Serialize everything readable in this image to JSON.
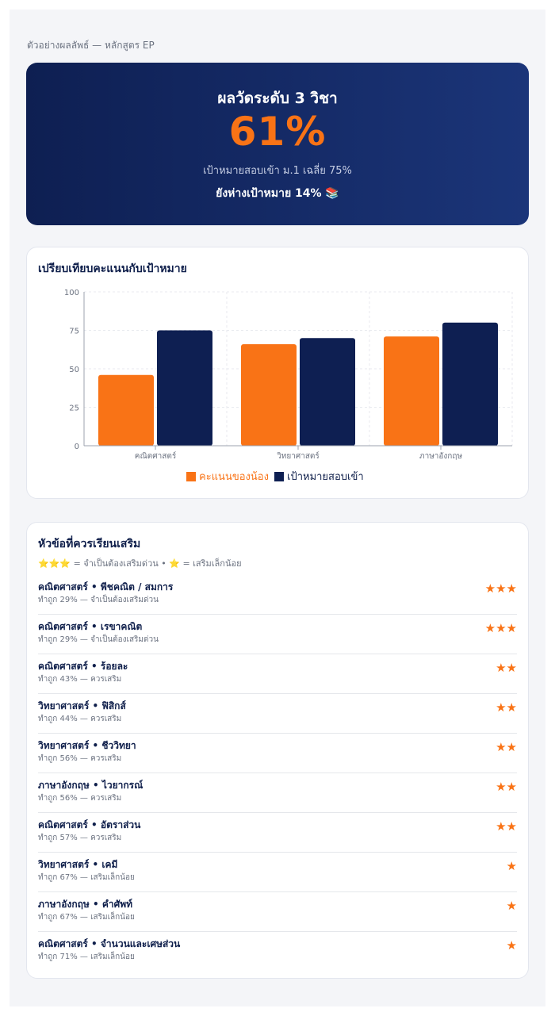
{
  "breadcrumb": "ตัวอย่างผลลัพธ์ — หลักสูตร EP",
  "hero": {
    "title": "ผลวัดระดับ 3 วิชา",
    "score": "61%",
    "target_text": "เป้าหมายสอบเข้า ม.1 เฉลี่ย 75%",
    "gap_text": "ยังห่างเป้าหมาย 14% 📚"
  },
  "colors": {
    "accent": "#f97316",
    "navy": "#0e1f52"
  },
  "chart_title": "เปรียบเทียบคะแนนกับเป้าหมาย",
  "chart_data": {
    "type": "bar",
    "categories": [
      "คณิตศาสตร์",
      "วิทยาศาสตร์",
      "ภาษาอังกฤษ"
    ],
    "series": [
      {
        "name": "คะแนนของน้อง",
        "values": [
          46,
          66,
          71
        ],
        "color": "#f97316"
      },
      {
        "name": "เป้าหมายสอบเข้า",
        "values": [
          75,
          70,
          80
        ],
        "color": "#0e1f52"
      }
    ],
    "ylim": [
      0,
      100
    ],
    "yticks": [
      0,
      25,
      50,
      75,
      100
    ],
    "grid": true,
    "legend": "bottom"
  },
  "topics": {
    "title": "หัวข้อที่ควรเรียนเสริม",
    "legend_note": "⭐⭐⭐ = จำเป็นต้องเสริมด่วน • ⭐ = เสริมเล็กน้อย",
    "items": [
      {
        "name": "คณิตศาสตร์ • พีชคณิต / สมการ",
        "sub": "ทำถูก 29% — จำเป็นต้องเสริมด่วน",
        "stars": "★★★"
      },
      {
        "name": "คณิตศาสตร์ • เรขาคณิต",
        "sub": "ทำถูก 29% — จำเป็นต้องเสริมด่วน",
        "stars": "★★★"
      },
      {
        "name": "คณิตศาสตร์ • ร้อยละ",
        "sub": "ทำถูก 43% — ควรเสริม",
        "stars": "★★"
      },
      {
        "name": "วิทยาศาสตร์ • ฟิสิกส์",
        "sub": "ทำถูก 44% — ควรเสริม",
        "stars": "★★"
      },
      {
        "name": "วิทยาศาสตร์ • ชีววิทยา",
        "sub": "ทำถูก 56% — ควรเสริม",
        "stars": "★★"
      },
      {
        "name": "ภาษาอังกฤษ • ไวยากรณ์",
        "sub": "ทำถูก 56% — ควรเสริม",
        "stars": "★★"
      },
      {
        "name": "คณิตศาสตร์ • อัตราส่วน",
        "sub": "ทำถูก 57% — ควรเสริม",
        "stars": "★★"
      },
      {
        "name": "วิทยาศาสตร์ • เคมี",
        "sub": "ทำถูก 67% — เสริมเล็กน้อย",
        "stars": "★"
      },
      {
        "name": "ภาษาอังกฤษ • คำศัพท์",
        "sub": "ทำถูก 67% — เสริมเล็กน้อย",
        "stars": "★"
      },
      {
        "name": "คณิตศาสตร์ • จำนวนและเศษส่วน",
        "sub": "ทำถูก 71% — เสริมเล็กน้อย",
        "stars": "★"
      }
    ]
  }
}
